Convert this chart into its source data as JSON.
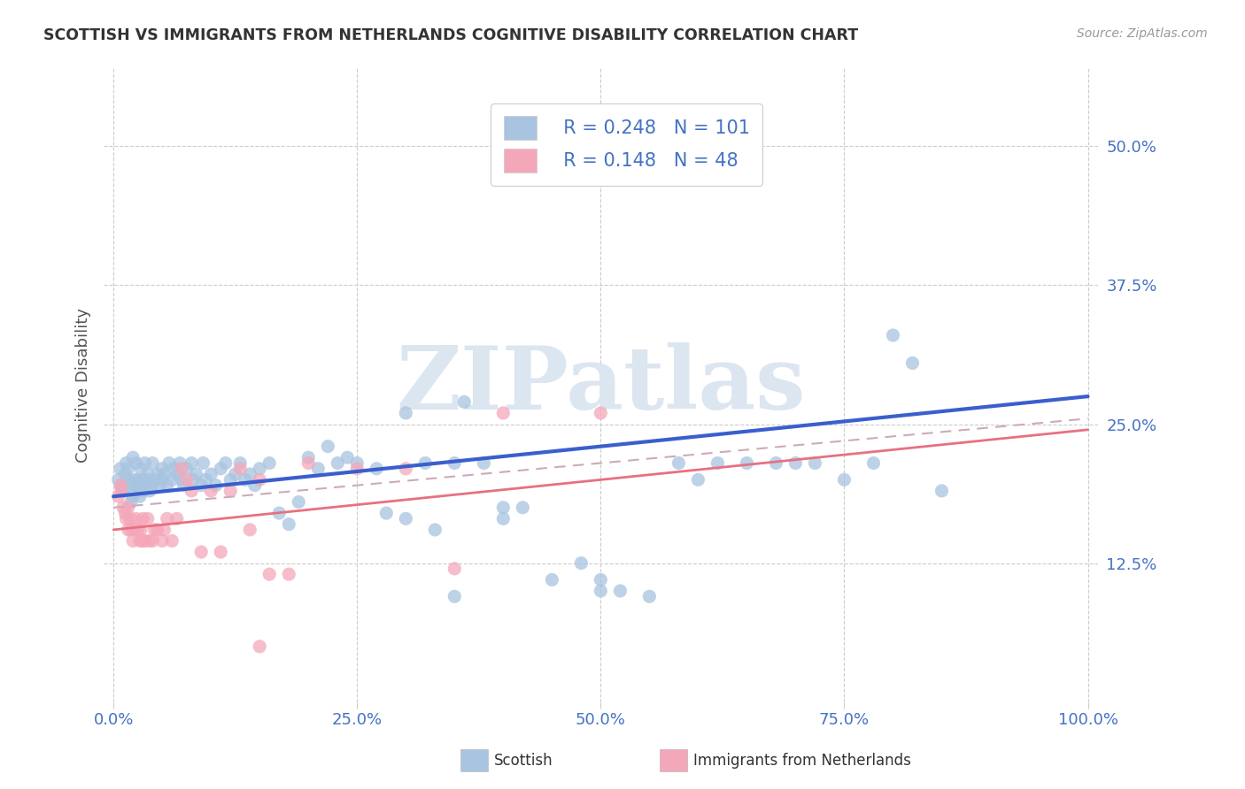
{
  "title": "SCOTTISH VS IMMIGRANTS FROM NETHERLANDS COGNITIVE DISABILITY CORRELATION CHART",
  "source": "Source: ZipAtlas.com",
  "ylabel": "Cognitive Disability",
  "ytick_vals": [
    0.125,
    0.25,
    0.375,
    0.5
  ],
  "ytick_labels": [
    "12.5%",
    "25.0%",
    "37.5%",
    "50.0%"
  ],
  "xtick_vals": [
    0.0,
    0.25,
    0.5,
    0.75,
    1.0
  ],
  "xtick_labels": [
    "0.0%",
    "25.0%",
    "50.0%",
    "75.0%",
    "100.0%"
  ],
  "legend_labels": [
    "Scottish",
    "Immigrants from Netherlands"
  ],
  "blue_scatter_color": "#a8c4e0",
  "pink_scatter_color": "#f4a7b9",
  "blue_line_color": "#3a5fcd",
  "pink_line_color": "#e87080",
  "dashed_line_color": "#ccaabb",
  "legend_text_color": "#4472C4",
  "legend_R_N_color": "#4472C4",
  "axis_label_color": "#4472C4",
  "R_blue": 0.248,
  "N_blue": 101,
  "R_pink": 0.148,
  "N_pink": 48,
  "blue_scatter_x": [
    0.005,
    0.007,
    0.008,
    0.01,
    0.012,
    0.013,
    0.015,
    0.015,
    0.017,
    0.018,
    0.02,
    0.02,
    0.022,
    0.022,
    0.023,
    0.025,
    0.025,
    0.027,
    0.028,
    0.03,
    0.03,
    0.032,
    0.033,
    0.035,
    0.035,
    0.037,
    0.04,
    0.04,
    0.042,
    0.045,
    0.048,
    0.05,
    0.05,
    0.052,
    0.055,
    0.057,
    0.06,
    0.062,
    0.065,
    0.068,
    0.07,
    0.072,
    0.075,
    0.08,
    0.082,
    0.085,
    0.09,
    0.092,
    0.095,
    0.1,
    0.105,
    0.11,
    0.115,
    0.12,
    0.125,
    0.13,
    0.135,
    0.14,
    0.145,
    0.15,
    0.16,
    0.17,
    0.18,
    0.19,
    0.2,
    0.21,
    0.22,
    0.23,
    0.24,
    0.25,
    0.27,
    0.28,
    0.3,
    0.32,
    0.33,
    0.35,
    0.36,
    0.38,
    0.4,
    0.42,
    0.45,
    0.48,
    0.5,
    0.52,
    0.55,
    0.58,
    0.6,
    0.62,
    0.65,
    0.68,
    0.7,
    0.72,
    0.75,
    0.78,
    0.8,
    0.82,
    0.85,
    0.3,
    0.35,
    0.4,
    0.5
  ],
  "blue_scatter_y": [
    0.2,
    0.21,
    0.195,
    0.19,
    0.205,
    0.215,
    0.2,
    0.21,
    0.195,
    0.18,
    0.185,
    0.22,
    0.2,
    0.195,
    0.215,
    0.195,
    0.2,
    0.185,
    0.21,
    0.19,
    0.2,
    0.215,
    0.195,
    0.2,
    0.205,
    0.19,
    0.195,
    0.215,
    0.2,
    0.205,
    0.195,
    0.2,
    0.21,
    0.205,
    0.195,
    0.215,
    0.2,
    0.21,
    0.205,
    0.215,
    0.2,
    0.195,
    0.21,
    0.215,
    0.2,
    0.205,
    0.195,
    0.215,
    0.2,
    0.205,
    0.195,
    0.21,
    0.215,
    0.2,
    0.205,
    0.215,
    0.2,
    0.205,
    0.195,
    0.21,
    0.215,
    0.17,
    0.16,
    0.18,
    0.22,
    0.21,
    0.23,
    0.215,
    0.22,
    0.215,
    0.21,
    0.17,
    0.165,
    0.215,
    0.155,
    0.215,
    0.27,
    0.215,
    0.165,
    0.175,
    0.11,
    0.125,
    0.11,
    0.1,
    0.095,
    0.215,
    0.2,
    0.215,
    0.215,
    0.215,
    0.215,
    0.215,
    0.2,
    0.215,
    0.33,
    0.305,
    0.19,
    0.26,
    0.095,
    0.175,
    0.1
  ],
  "pink_scatter_x": [
    0.005,
    0.007,
    0.008,
    0.01,
    0.012,
    0.013,
    0.015,
    0.015,
    0.017,
    0.018,
    0.02,
    0.022,
    0.023,
    0.025,
    0.027,
    0.028,
    0.03,
    0.03,
    0.032,
    0.035,
    0.037,
    0.04,
    0.042,
    0.045,
    0.05,
    0.052,
    0.055,
    0.06,
    0.065,
    0.07,
    0.075,
    0.08,
    0.09,
    0.1,
    0.11,
    0.12,
    0.13,
    0.14,
    0.15,
    0.16,
    0.18,
    0.2,
    0.25,
    0.3,
    0.35,
    0.4,
    0.5,
    0.15
  ],
  "pink_scatter_y": [
    0.185,
    0.195,
    0.19,
    0.175,
    0.17,
    0.165,
    0.155,
    0.175,
    0.165,
    0.155,
    0.145,
    0.155,
    0.165,
    0.155,
    0.145,
    0.155,
    0.145,
    0.165,
    0.145,
    0.165,
    0.145,
    0.145,
    0.155,
    0.155,
    0.145,
    0.155,
    0.165,
    0.145,
    0.165,
    0.21,
    0.2,
    0.19,
    0.135,
    0.19,
    0.135,
    0.19,
    0.21,
    0.155,
    0.2,
    0.115,
    0.115,
    0.215,
    0.21,
    0.21,
    0.12,
    0.26,
    0.26,
    0.05
  ],
  "xlim": [
    -0.01,
    1.01
  ],
  "ylim": [
    0.0,
    0.57
  ],
  "background_color": "#ffffff",
  "watermark": "ZIPatlas",
  "watermark_color": "#dce6f0",
  "grid_color": "#cccccc",
  "blue_line_start_y": 0.185,
  "blue_line_end_y": 0.275,
  "pink_line_start_y": 0.155,
  "pink_line_end_y": 0.245,
  "dashed_line_start_y": 0.175,
  "dashed_line_end_y": 0.255
}
